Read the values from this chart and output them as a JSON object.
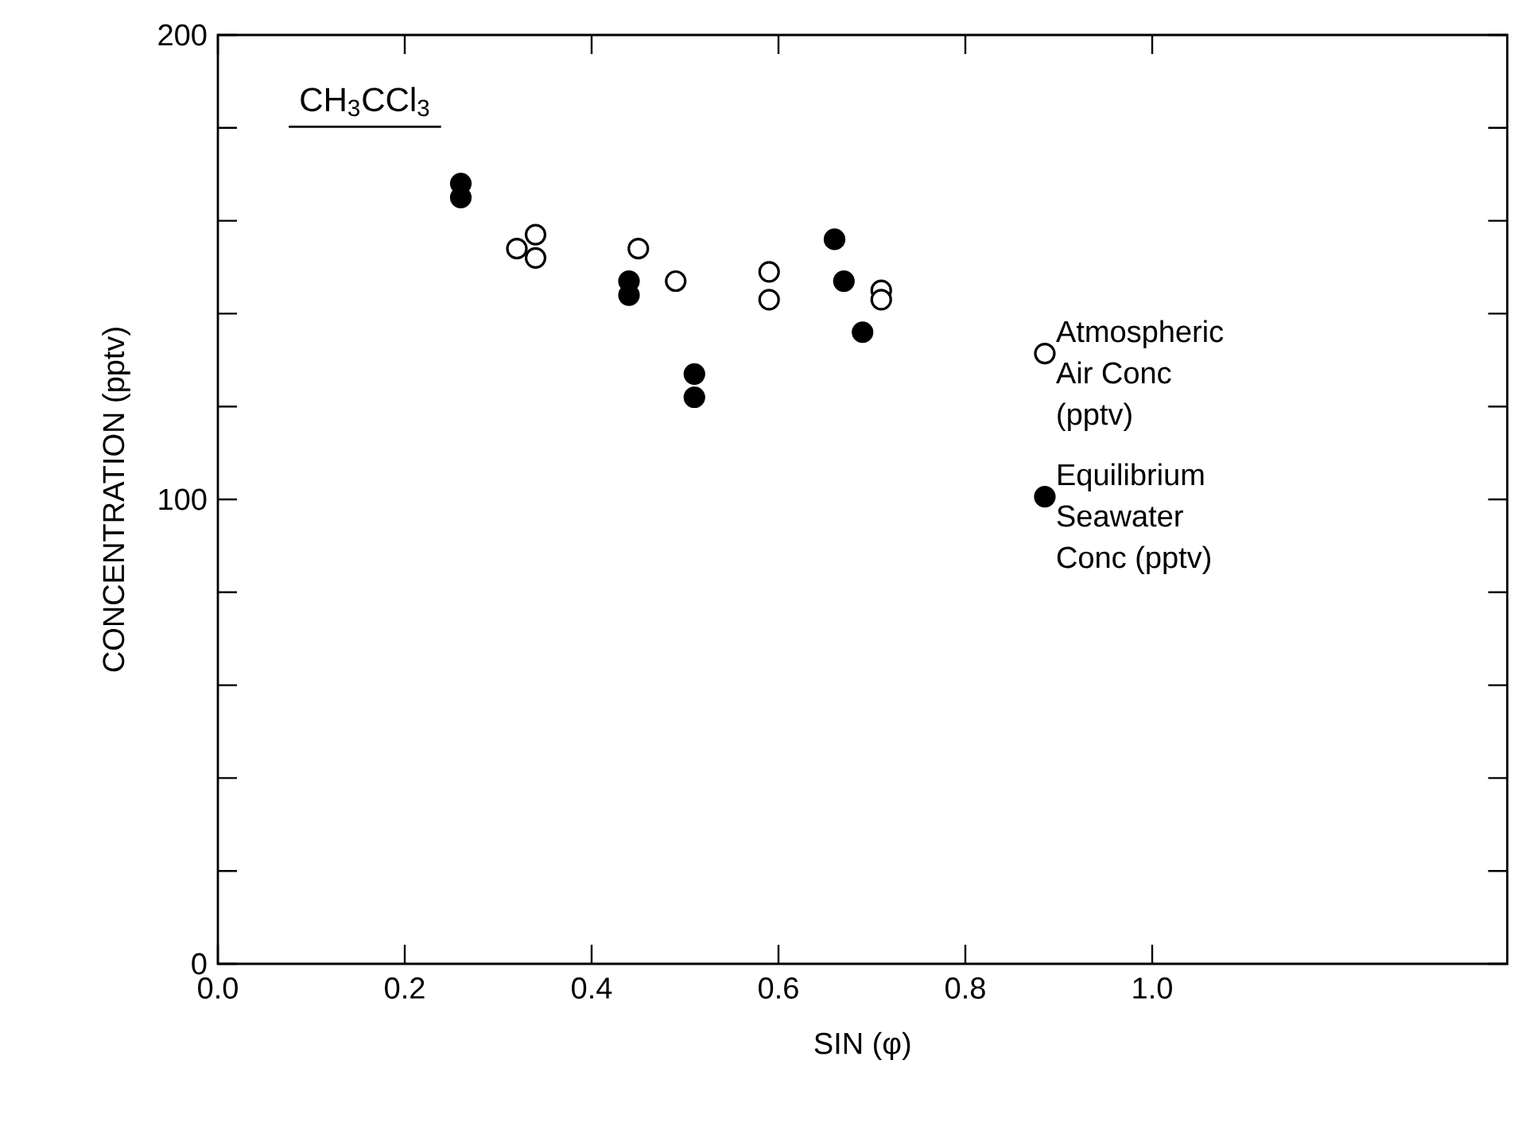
{
  "chart_data": {
    "type": "scatter",
    "title": "CH$_{3}$CCl$_{3}$",
    "xlabel": "SIN (φ)",
    "ylabel": "CONCENTRATION (pptv)",
    "xlim": [
      0,
      1.38
    ],
    "ylim": [
      0,
      200
    ],
    "xticks": [
      {
        "value": 0,
        "label": "0.0"
      },
      {
        "value": 0.2,
        "label": "0.2"
      },
      {
        "value": 0.4,
        "label": "0.4"
      },
      {
        "value": 0.6,
        "label": "0.6"
      },
      {
        "value": 0.8,
        "label": "0.8"
      },
      {
        "value": 1.0,
        "label": "1.0"
      }
    ],
    "yticks": [
      0,
      {
        "value": 20,
        "label": null
      },
      {
        "value": 40,
        "label": null
      },
      {
        "value": 60,
        "label": null
      },
      {
        "value": 80,
        "label": null
      },
      100,
      {
        "value": 120,
        "label": null
      },
      {
        "value": 140,
        "label": null
      },
      {
        "value": 160,
        "label": null
      },
      {
        "value": 180,
        "label": null
      },
      200
    ],
    "legend": "right",
    "grid": false,
    "series": [
      {
        "name": "Atmospheric Air Conc (pptv)",
        "color": "#ffffff",
        "x": [
          0.32,
          0.34,
          0.34,
          0.45,
          0.49,
          0.59,
          0.59,
          0.71,
          0.71
        ],
        "values": [
          154,
          157,
          152,
          154,
          147,
          149,
          143,
          145,
          143
        ]
      },
      {
        "name": "Equilibrium Seawater Conc (pptv)",
        "color": "#000000",
        "x": [
          0.26,
          0.26,
          0.44,
          0.44,
          0.51,
          0.51,
          0.66,
          0.67,
          0.69
        ],
        "values": [
          168,
          165,
          147,
          144,
          127,
          122,
          156,
          147,
          136
        ]
      }
    ]
  }
}
